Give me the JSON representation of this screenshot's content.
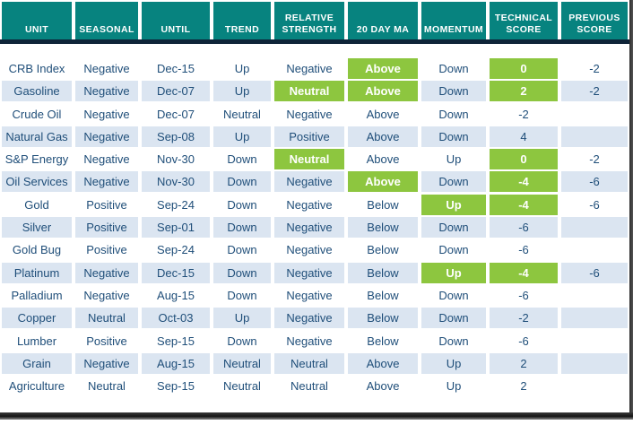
{
  "table": {
    "columns": [
      {
        "key": "unit",
        "label": "UNIT"
      },
      {
        "key": "seasonal",
        "label": "SEASONAL"
      },
      {
        "key": "until",
        "label": "UNTIL"
      },
      {
        "key": "trend",
        "label": "TREND"
      },
      {
        "key": "relative_strength",
        "label": "RELATIVE STRENGTH"
      },
      {
        "key": "ma20",
        "label": "20 DAY MA"
      },
      {
        "key": "momentum",
        "label": "MOMENTUM"
      },
      {
        "key": "technical_score",
        "label": "TECHNICAL SCORE"
      },
      {
        "key": "previous_score",
        "label": "PREVIOUS SCORE"
      }
    ],
    "rows": [
      {
        "unit": "CRB Index",
        "seasonal": "Negative",
        "until": "Dec-15",
        "trend": "Up",
        "relative_strength": "Negative",
        "ma20": "Above",
        "momentum": "Down",
        "technical_score": "0",
        "previous_score": "-2",
        "green": [
          "ma20",
          "technical_score"
        ]
      },
      {
        "unit": "Gasoline",
        "seasonal": "Negative",
        "until": "Dec-07",
        "trend": "Up",
        "relative_strength": "Neutral",
        "ma20": "Above",
        "momentum": "Down",
        "technical_score": "2",
        "previous_score": "-2",
        "green": [
          "relative_strength",
          "ma20",
          "technical_score"
        ]
      },
      {
        "unit": "Crude Oil",
        "seasonal": "Negative",
        "until": "Dec-07",
        "trend": "Neutral",
        "relative_strength": "Negative",
        "ma20": "Above",
        "momentum": "Down",
        "technical_score": "-2",
        "previous_score": "",
        "green": []
      },
      {
        "unit": "Natural Gas",
        "seasonal": "Negative",
        "until": "Sep-08",
        "trend": "Up",
        "relative_strength": "Positive",
        "ma20": "Above",
        "momentum": "Down",
        "technical_score": "4",
        "previous_score": "",
        "green": []
      },
      {
        "unit": "S&P Energy",
        "seasonal": "Negative",
        "until": "Nov-30",
        "trend": "Down",
        "relative_strength": "Neutral",
        "ma20": "Above",
        "momentum": "Up",
        "technical_score": "0",
        "previous_score": "-2",
        "green": [
          "relative_strength",
          "technical_score"
        ]
      },
      {
        "unit": "Oil Services",
        "seasonal": "Negative",
        "until": "Nov-30",
        "trend": "Down",
        "relative_strength": "Negative",
        "ma20": "Above",
        "momentum": "Down",
        "technical_score": "-4",
        "previous_score": "-6",
        "green": [
          "ma20",
          "technical_score"
        ]
      },
      {
        "unit": "Gold",
        "seasonal": "Positive",
        "until": "Sep-24",
        "trend": "Down",
        "relative_strength": "Negative",
        "ma20": "Below",
        "momentum": "Up",
        "technical_score": "-4",
        "previous_score": "-6",
        "green": [
          "momentum",
          "technical_score"
        ]
      },
      {
        "unit": "Silver",
        "seasonal": "Positive",
        "until": "Sep-01",
        "trend": "Down",
        "relative_strength": "Negative",
        "ma20": "Below",
        "momentum": "Down",
        "technical_score": "-6",
        "previous_score": "",
        "green": []
      },
      {
        "unit": "Gold Bug",
        "seasonal": "Positive",
        "until": "Sep-24",
        "trend": "Down",
        "relative_strength": "Negative",
        "ma20": "Below",
        "momentum": "Down",
        "technical_score": "-6",
        "previous_score": "",
        "green": []
      },
      {
        "unit": "Platinum",
        "seasonal": "Negative",
        "until": "Dec-15",
        "trend": "Down",
        "relative_strength": "Negative",
        "ma20": "Below",
        "momentum": "Up",
        "technical_score": "-4",
        "previous_score": "-6",
        "green": [
          "momentum",
          "technical_score"
        ]
      },
      {
        "unit": "Palladium",
        "seasonal": "Negative",
        "until": "Aug-15",
        "trend": "Down",
        "relative_strength": "Negative",
        "ma20": "Below",
        "momentum": "Down",
        "technical_score": "-6",
        "previous_score": "",
        "green": []
      },
      {
        "unit": "Copper",
        "seasonal": "Neutral",
        "until": "Oct-03",
        "trend": "Up",
        "relative_strength": "Negative",
        "ma20": "Below",
        "momentum": "Down",
        "technical_score": "-2",
        "previous_score": "",
        "green": []
      },
      {
        "unit": "Lumber",
        "seasonal": "Positive",
        "until": "Sep-15",
        "trend": "Down",
        "relative_strength": "Negative",
        "ma20": "Below",
        "momentum": "Down",
        "technical_score": "-6",
        "previous_score": "",
        "green": []
      },
      {
        "unit": "Grain",
        "seasonal": "Negative",
        "until": "Aug-15",
        "trend": "Neutral",
        "relative_strength": "Neutral",
        "ma20": "Above",
        "momentum": "Up",
        "technical_score": "2",
        "previous_score": "",
        "green": []
      },
      {
        "unit": "Agriculture",
        "seasonal": "Neutral",
        "until": "Sep-15",
        "trend": "Neutral",
        "relative_strength": "Neutral",
        "ma20": "Above",
        "momentum": "Up",
        "technical_score": "2",
        "previous_score": "",
        "green": []
      }
    ]
  },
  "colors": {
    "header_bg": "#07837f",
    "divider": "#0f2438",
    "row_alt_bg": "#dbe5f1",
    "highlight_green": "#8dc63f",
    "text_navy": "#1f4e79",
    "header_text": "#ffffff"
  }
}
